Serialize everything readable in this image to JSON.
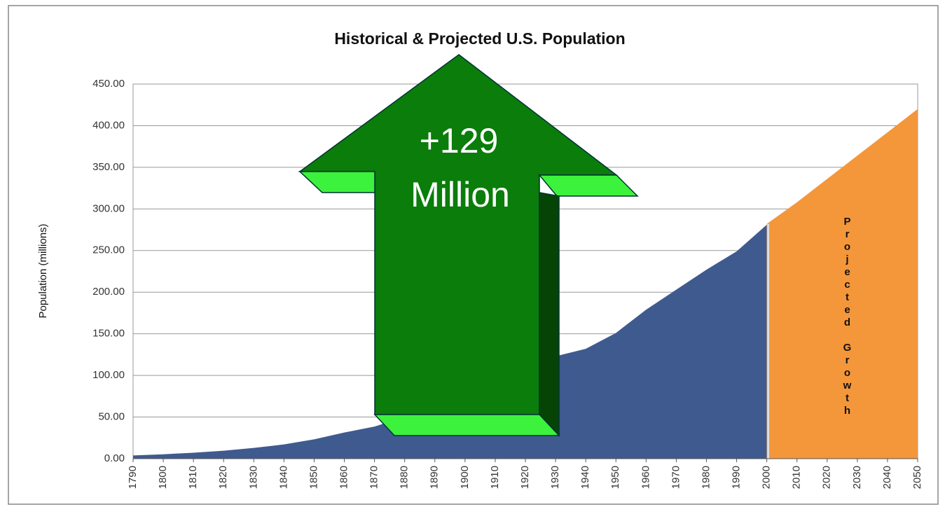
{
  "chart_data": {
    "type": "area",
    "title": "Historical & Projected U.S. Population",
    "y_label": "Population (millions)",
    "categories": [
      "1790",
      "1800",
      "1810",
      "1820",
      "1830",
      "1840",
      "1850",
      "1860",
      "1870",
      "1880",
      "1890",
      "1900",
      "1910",
      "1920",
      "1930",
      "1940",
      "1950",
      "1960",
      "1970",
      "1980",
      "1990",
      "2000",
      "2010",
      "2020",
      "2030",
      "2040",
      "2050"
    ],
    "series": [
      {
        "name": "Historical",
        "color": "#3f5a8f",
        "values": [
          3.9,
          5.3,
          7.2,
          9.6,
          12.9,
          17.1,
          23.2,
          31.4,
          38.6,
          50.2,
          63,
          76,
          92,
          106,
          123,
          132,
          151,
          179,
          203,
          227,
          249,
          281,
          null,
          null,
          null,
          null,
          null
        ]
      },
      {
        "name": "Projected",
        "color": "#f4963a",
        "values": [
          null,
          null,
          null,
          null,
          null,
          null,
          null,
          null,
          null,
          null,
          null,
          null,
          null,
          null,
          null,
          null,
          null,
          null,
          null,
          null,
          null,
          282,
          308,
          336,
          364,
          392,
          420
        ]
      }
    ],
    "ylim": [
      0,
      450
    ],
    "yticks": [
      {
        "value": 0,
        "label": "0.00"
      },
      {
        "value": 50,
        "label": "50.00"
      },
      {
        "value": 100,
        "label": "100.00"
      },
      {
        "value": 150,
        "label": "150.00"
      },
      {
        "value": 200,
        "label": "200.00"
      },
      {
        "value": 250,
        "label": "250.00"
      },
      {
        "value": 300,
        "label": "300.00"
      },
      {
        "value": 350,
        "label": "350.00"
      },
      {
        "value": 400,
        "label": "400.00"
      },
      {
        "value": 450,
        "label": "450.00"
      }
    ],
    "grid": true,
    "annotation": [
      "+129",
      "Million"
    ],
    "projection_label": "Projected Growth"
  }
}
